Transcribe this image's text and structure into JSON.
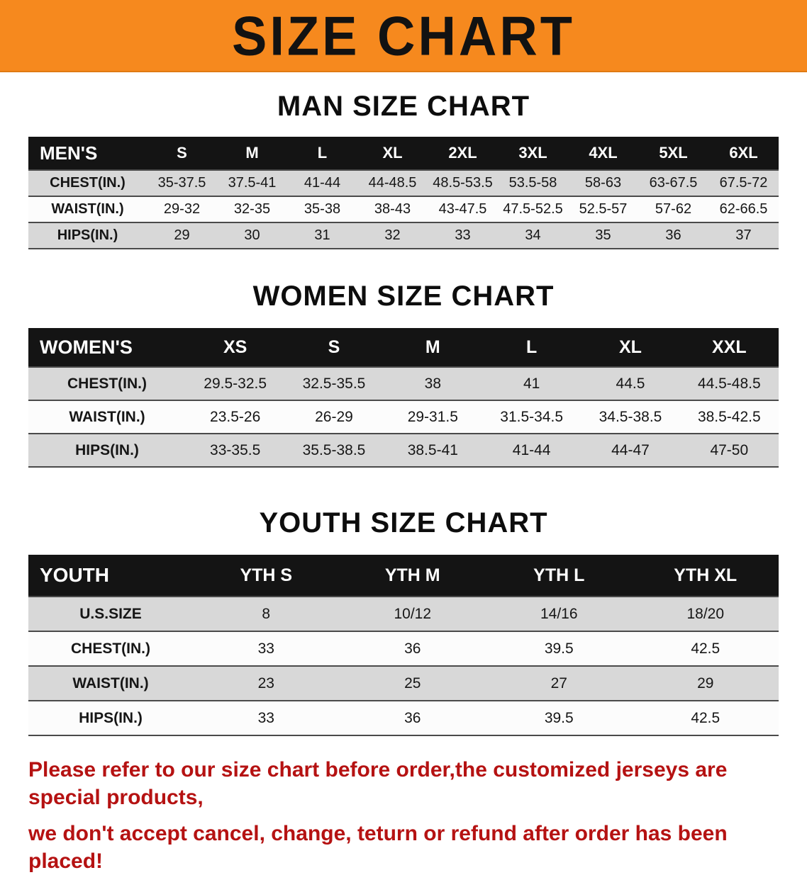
{
  "banner": {
    "title": "SIZE CHART",
    "bg_color": "#f6891e",
    "text_color": "#121212"
  },
  "footer": {
    "line1": "Please refer to our size chart before order,the customized jerseys are special products,",
    "line2": "we don't accept cancel, change, teturn or refund after order has been placed!",
    "text_color": "#b51212"
  },
  "chart_data": [
    {
      "type": "table",
      "title": "MAN SIZE CHART",
      "header": [
        "MEN'S",
        "S",
        "M",
        "L",
        "XL",
        "2XL",
        "3XL",
        "4XL",
        "5XL",
        "6XL"
      ],
      "rows": [
        [
          "CHEST(IN.)",
          "35-37.5",
          "37.5-41",
          "41-44",
          "44-48.5",
          "48.5-53.5",
          "53.5-58",
          "58-63",
          "63-67.5",
          "67.5-72"
        ],
        [
          "WAIST(IN.)",
          "29-32",
          "32-35",
          "35-38",
          "38-43",
          "43-47.5",
          "47.5-52.5",
          "52.5-57",
          "57-62",
          "62-66.5"
        ],
        [
          "HIPS(IN.)",
          "29",
          "30",
          "31",
          "32",
          "33",
          "34",
          "35",
          "36",
          "37"
        ]
      ]
    },
    {
      "type": "table",
      "title": "WOMEN SIZE CHART",
      "header": [
        "WOMEN'S",
        "XS",
        "S",
        "M",
        "L",
        "XL",
        "XXL"
      ],
      "rows": [
        [
          "CHEST(IN.)",
          "29.5-32.5",
          "32.5-35.5",
          "38",
          "41",
          "44.5",
          "44.5-48.5"
        ],
        [
          "WAIST(IN.)",
          "23.5-26",
          "26-29",
          "29-31.5",
          "31.5-34.5",
          "34.5-38.5",
          "38.5-42.5"
        ],
        [
          "HIPS(IN.)",
          "33-35.5",
          "35.5-38.5",
          "38.5-41",
          "41-44",
          "44-47",
          "47-50"
        ]
      ]
    },
    {
      "type": "table",
      "title": "YOUTH SIZE CHART",
      "header": [
        "YOUTH",
        "YTH S",
        "YTH M",
        "YTH L",
        "YTH XL"
      ],
      "rows": [
        [
          "U.S.SIZE",
          "8",
          "10/12",
          "14/16",
          "18/20"
        ],
        [
          "CHEST(IN.)",
          "33",
          "36",
          "39.5",
          "42.5"
        ],
        [
          "WAIST(IN.)",
          "23",
          "25",
          "27",
          "29"
        ],
        [
          "HIPS(IN.)",
          "33",
          "36",
          "39.5",
          "42.5"
        ]
      ]
    }
  ]
}
